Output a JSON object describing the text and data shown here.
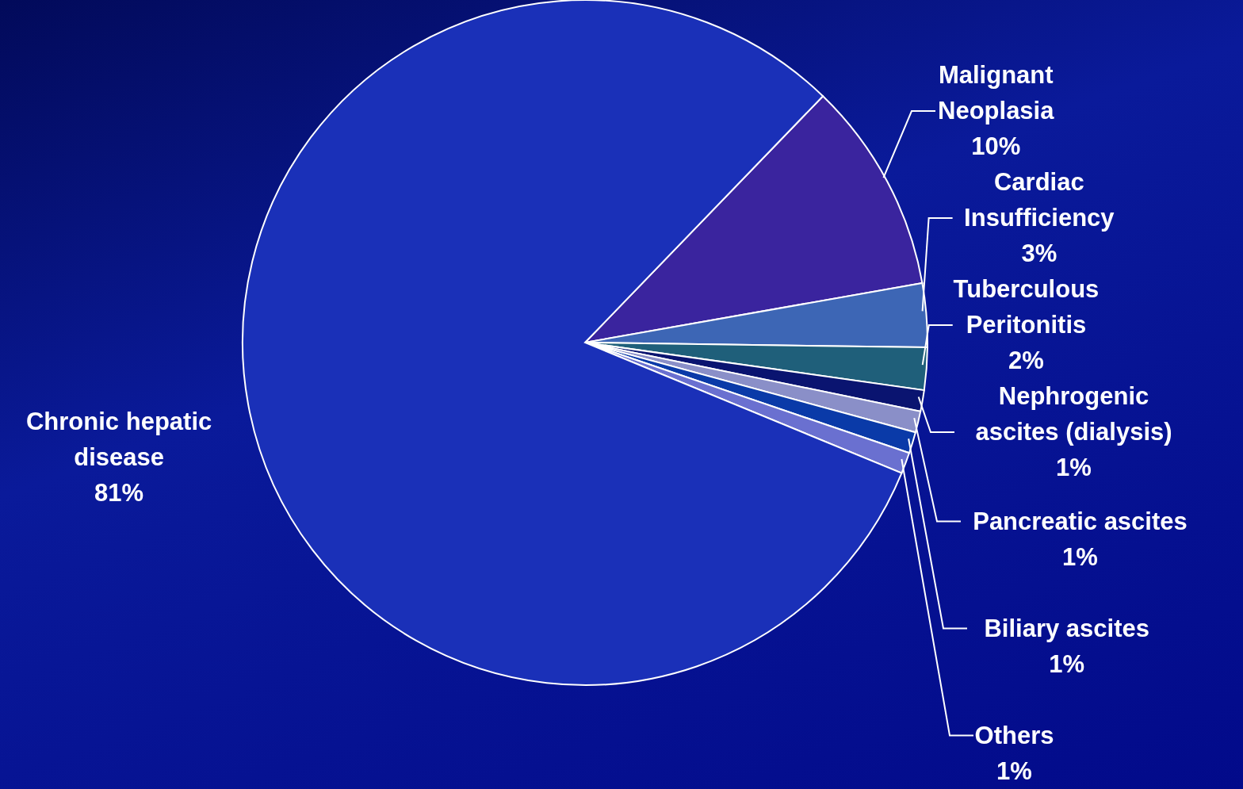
{
  "chart_data": {
    "type": "pie",
    "categories": [
      "Malignant Neoplasia",
      "Cardiac Insufficiency",
      "Tuberculous Peritonitis",
      "Nephrogenic ascites (dialysis)",
      "Pancreatic ascites",
      "Biliary ascites",
      "Others",
      "Chronic hepatic disease"
    ],
    "values": [
      10,
      3,
      2,
      1,
      1,
      1,
      1,
      81
    ],
    "value_labels": [
      "10%",
      "3%",
      "2%",
      "1%",
      "1%",
      "1%",
      "1%",
      "81%"
    ],
    "colors": [
      "#3a249e",
      "#3d66b5",
      "#1f5f7a",
      "#0a1470",
      "#8a8fc8",
      "#0a3aa8",
      "#6a70d0",
      "#1a30b8"
    ],
    "legend": false
  }
}
